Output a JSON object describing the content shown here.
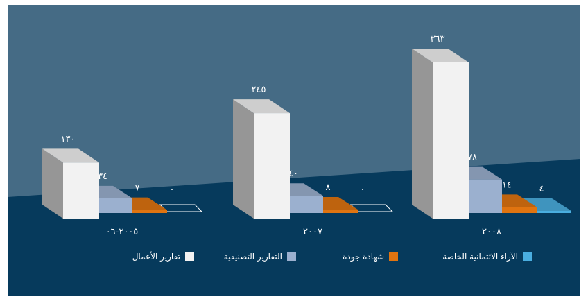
{
  "chart_data": {
    "type": "bar",
    "style": "3d-grouped-bar",
    "direction": "rtl",
    "groups": [
      {
        "label": "٢٠٠٥-٠٦",
        "values": [
          130,
          34,
          7,
          0
        ],
        "value_labels": [
          "١٣٠",
          "٣٤",
          "٧",
          "٠"
        ]
      },
      {
        "label": "٢٠٠٧",
        "values": [
          245,
          40,
          8,
          0
        ],
        "value_labels": [
          "٢٤٥",
          "٤٠",
          "٨",
          "٠"
        ]
      },
      {
        "label": "٢٠٠٨",
        "values": [
          363,
          78,
          14,
          4
        ],
        "value_labels": [
          "٣٦٣",
          "٧٨",
          "١٤",
          "٤"
        ]
      }
    ],
    "series": [
      {
        "name": "تقارير الأعمال",
        "color": "#f2f2f2"
      },
      {
        "name": "التقارير التصنيفية",
        "color": "#9bb0cf"
      },
      {
        "name": "شهادة جودة",
        "color": "#e07410"
      },
      {
        "name": "الآراء الائتمانية الخاصة",
        "color": "#4aaee0"
      }
    ],
    "legend_position": "bottom",
    "grid": false
  },
  "colors": {
    "background_upper": "#456b85",
    "background_lower": "#063a5c",
    "text": "#ffffff"
  }
}
